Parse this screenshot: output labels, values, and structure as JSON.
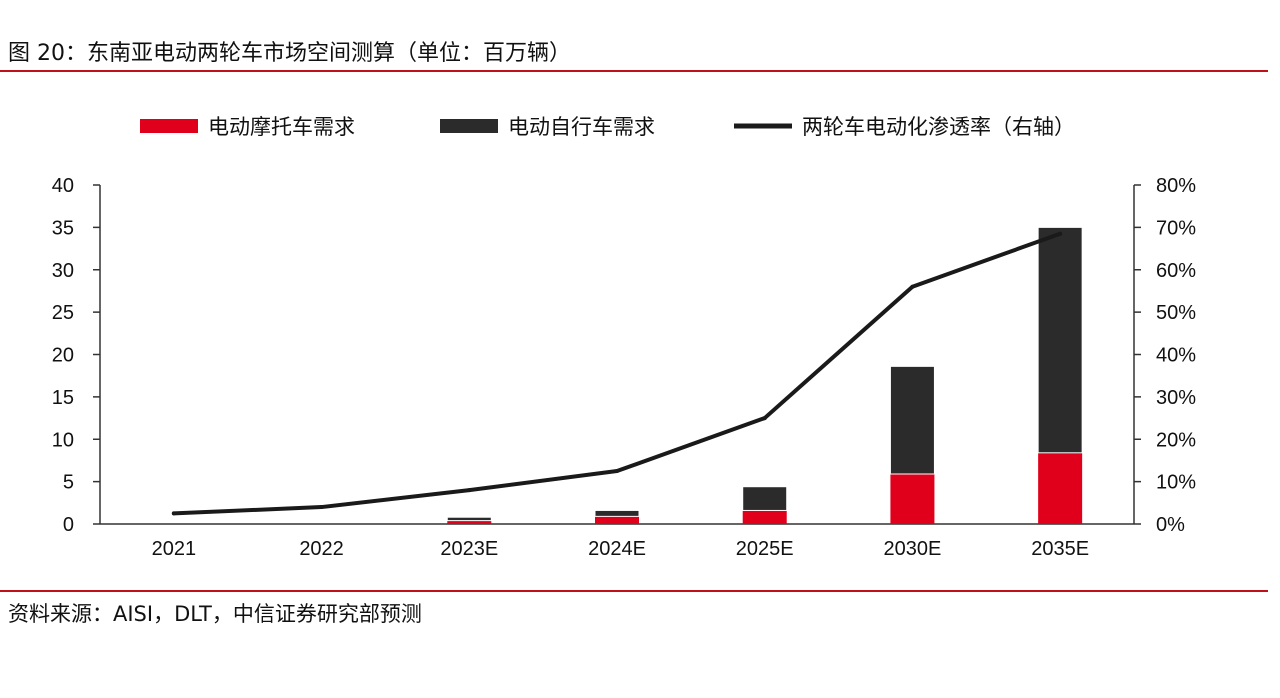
{
  "title": "图 20：东南亚电动两轮车市场空间测算（单位：百万辆）",
  "source": "资料来源：AISI，DLT，中信证券研究部预测",
  "colors": {
    "motorcycle": "#e0001b",
    "bicycle": "#2b2b2b",
    "penetration": "#1a1a1a",
    "rule": "#c0101a"
  },
  "chart_data": {
    "type": "bar",
    "stacked": true,
    "categories": [
      "2021",
      "2022",
      "2023E",
      "2024E",
      "2025E",
      "2030E",
      "2035E"
    ],
    "series": [
      {
        "name": "电动摩托车需求",
        "type": "bar",
        "axis": "left",
        "values": [
          0.0,
          0.0,
          0.4,
          0.9,
          1.6,
          5.9,
          8.4
        ]
      },
      {
        "name": "电动自行车需求",
        "type": "bar",
        "axis": "left",
        "values": [
          0.0,
          0.0,
          0.4,
          0.7,
          2.8,
          12.7,
          26.6
        ]
      },
      {
        "name": "两轮车电动化渗透率（右轴）",
        "type": "line",
        "axis": "right",
        "values": [
          2.5,
          4.0,
          8.0,
          12.5,
          25.0,
          56.0,
          68.5
        ]
      }
    ],
    "y_left": {
      "min": 0,
      "max": 40,
      "ticks": [
        "0",
        "5",
        "10",
        "15",
        "20",
        "25",
        "30",
        "35",
        "40"
      ]
    },
    "y_right": {
      "min": 0,
      "max": 80,
      "ticks": [
        "0%",
        "10%",
        "20%",
        "30%",
        "40%",
        "50%",
        "60%",
        "70%",
        "80%"
      ]
    },
    "grid": false,
    "legend_position": "top"
  }
}
